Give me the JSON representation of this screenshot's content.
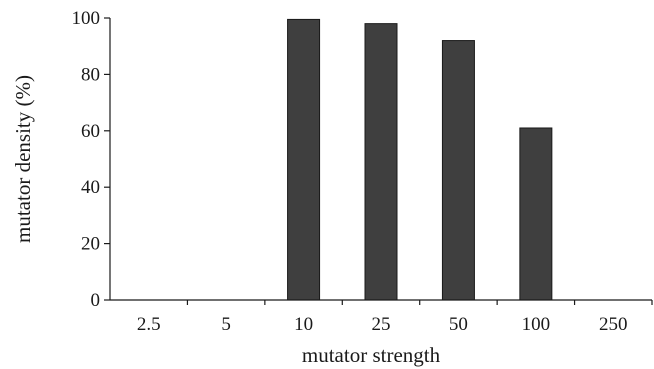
{
  "chart_data": {
    "type": "bar",
    "categories": [
      "2.5",
      "5",
      "10",
      "25",
      "50",
      "100",
      "250"
    ],
    "values": [
      0,
      0,
      99.5,
      98,
      92,
      61,
      0
    ],
    "title": "",
    "xlabel": "mutator strength",
    "ylabel": "mutator density (%)",
    "ylim": [
      0,
      100
    ],
    "yticks": [
      "0",
      "20",
      "40",
      "60",
      "80",
      "100"
    ],
    "bar_color": "#3f3f3f",
    "grid": false
  }
}
